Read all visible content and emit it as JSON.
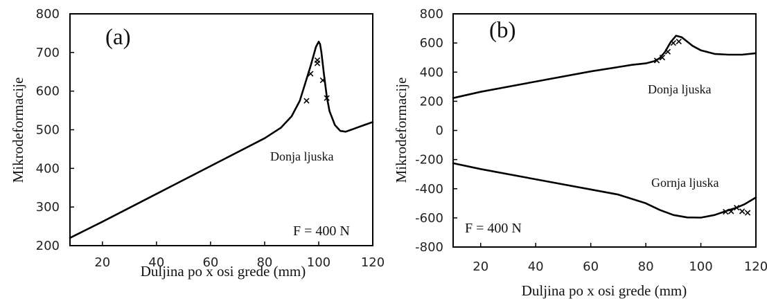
{
  "chart_data": [
    {
      "type": "line",
      "panel_label": "(a)",
      "xlabel": "Duljina po x osi grede (mm)",
      "ylabel": "Mikrodeformacije",
      "xlim": [
        8,
        120
      ],
      "ylim": [
        200,
        800
      ],
      "xticks": [
        20,
        40,
        60,
        80,
        100,
        120
      ],
      "yticks": [
        200,
        300,
        400,
        500,
        600,
        700,
        800
      ],
      "grid": false,
      "series": [
        {
          "style": "line",
          "x": [
            8,
            20,
            40,
            60,
            80,
            86,
            90,
            93,
            95,
            97,
            98,
            99,
            100,
            100.5,
            101,
            102,
            103,
            104,
            106,
            108,
            110,
            112,
            114,
            116,
            118,
            120
          ],
          "y": [
            220,
            262,
            334,
            406,
            478,
            505,
            535,
            575,
            620,
            665,
            690,
            715,
            728,
            722,
            700,
            640,
            585,
            548,
            512,
            497,
            495,
            500,
            505,
            510,
            515,
            520
          ]
        },
        {
          "style": "markers",
          "marker": "x",
          "x": [
            95.5,
            97,
            99.5,
            99.5,
            101.5,
            103
          ],
          "y": [
            575,
            645,
            672,
            680,
            628,
            582
          ]
        }
      ],
      "annotations": [
        "Donja ljuska",
        "F = 400 N"
      ]
    },
    {
      "type": "line",
      "panel_label": "(b)",
      "xlabel": "Duljina po x osi grede (mm)",
      "ylabel": "Mikrodeformacije",
      "xlim": [
        10,
        120
      ],
      "ylim": [
        -800,
        800
      ],
      "xticks": [
        20,
        40,
        60,
        80,
        100,
        120
      ],
      "yticks": [
        -800,
        -600,
        -400,
        -200,
        0,
        200,
        400,
        600,
        800
      ],
      "grid": false,
      "series": [
        {
          "name": "Donja ljuska",
          "style": "line",
          "x": [
            10,
            20,
            40,
            60,
            70,
            75,
            80,
            83,
            85,
            87,
            89,
            91,
            93,
            95,
            97,
            100,
            105,
            110,
            115,
            120
          ],
          "y": [
            222,
            265,
            335,
            405,
            435,
            450,
            460,
            475,
            495,
            540,
            605,
            650,
            640,
            610,
            580,
            550,
            525,
            520,
            520,
            530
          ]
        },
        {
          "style": "markers",
          "marker": "x",
          "x": [
            84,
            86,
            88,
            90,
            92
          ],
          "y": [
            480,
            500,
            540,
            600,
            610
          ]
        },
        {
          "name": "Gornja ljuska",
          "style": "line",
          "x": [
            10,
            20,
            40,
            60,
            70,
            80,
            85,
            90,
            95,
            100,
            105,
            110,
            113,
            116,
            120
          ],
          "y": [
            -225,
            -265,
            -335,
            -405,
            -440,
            -500,
            -545,
            -580,
            -597,
            -598,
            -580,
            -548,
            -530,
            -505,
            -460
          ]
        },
        {
          "style": "markers",
          "marker": "x",
          "x": [
            109,
            111,
            113,
            115,
            117
          ],
          "y": [
            -558,
            -555,
            -530,
            -555,
            -565
          ]
        }
      ],
      "annotations": [
        "Donja ljuska",
        "Gornja ljuska",
        "F = 400 N"
      ]
    }
  ]
}
